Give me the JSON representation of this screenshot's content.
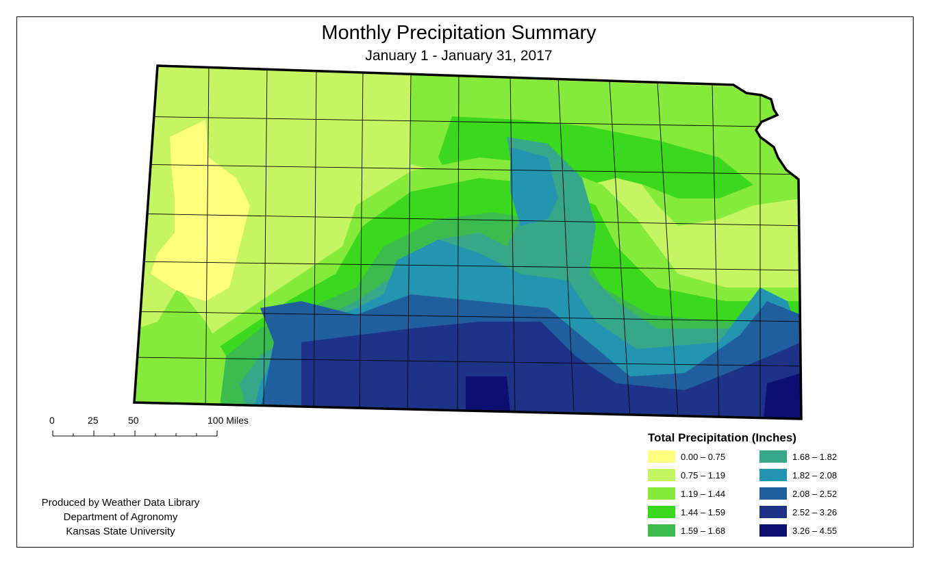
{
  "title": "Monthly Precipitation Summary",
  "subtitle": "January 1 - January 31, 2017",
  "scale_bar": {
    "ticks": [
      "0",
      "25",
      "50",
      "100 Miles"
    ]
  },
  "credits": [
    "Produced by Weather Data Library",
    "Department of Agronomy",
    "Kansas State University"
  ],
  "legend": {
    "title": "Total Precipitation (Inches)",
    "items": [
      {
        "label": "0.00 – 0.75",
        "color": "#ffff80"
      },
      {
        "label": "0.75 – 1.19",
        "color": "#c5f562"
      },
      {
        "label": "1.19 – 1.44",
        "color": "#86ea3c"
      },
      {
        "label": "1.44 – 1.59",
        "color": "#3cd81d"
      },
      {
        "label": "1.59 – 1.68",
        "color": "#3cbc4f"
      },
      {
        "label": "1.68 – 1.82",
        "color": "#37a789"
      },
      {
        "label": "1.82 – 2.08",
        "color": "#2395b1"
      },
      {
        "label": "2.08 – 2.52",
        "color": "#215e9d"
      },
      {
        "label": "2.52 – 3.26",
        "color": "#1c3387"
      },
      {
        "label": "3.26 – 4.55",
        "color": "#0c0f6f"
      }
    ]
  }
}
